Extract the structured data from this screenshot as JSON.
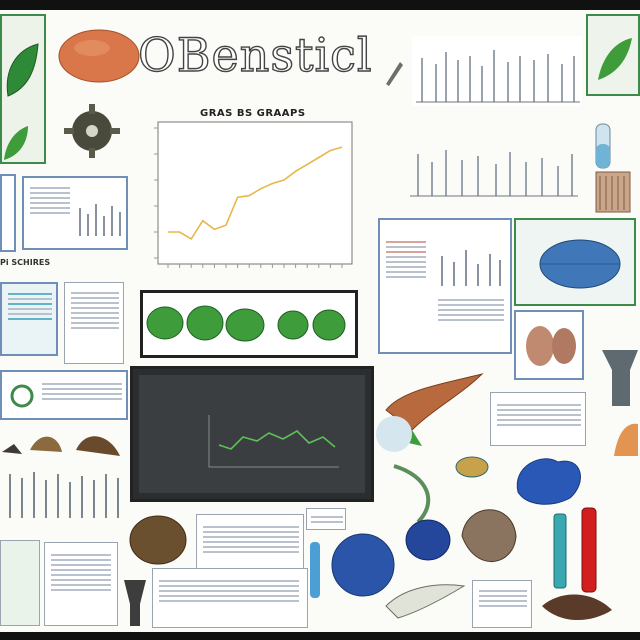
{
  "poster": {
    "title": "OBensticl",
    "chart_heading": "GRAS BS GRAAPS",
    "left_caption": "Pi SCHIRES"
  },
  "chart_data": {
    "type": "line",
    "title": "GRAS BS GRAAPS",
    "x": [
      1,
      2,
      3,
      4,
      5,
      6,
      7,
      8,
      9,
      10,
      11,
      12,
      13,
      14,
      15,
      16
    ],
    "values": [
      0.3,
      0.3,
      0.22,
      0.43,
      0.33,
      0.38,
      0.7,
      0.72,
      0.8,
      0.86,
      0.9,
      1.0,
      1.08,
      1.16,
      1.24,
      1.28
    ],
    "ylim": [
      0,
      1.5
    ],
    "grid": false,
    "series_color": "#e6b84a"
  },
  "colors": {
    "leaf_green": "#3f9c3a",
    "deep_blue": "#1f4fa8",
    "accent_red": "#d11f1f",
    "panel_blue": "#6f8fb8"
  },
  "icons": [
    "leaf-icon",
    "blob-icon",
    "shell-icon",
    "bird-icon"
  ]
}
